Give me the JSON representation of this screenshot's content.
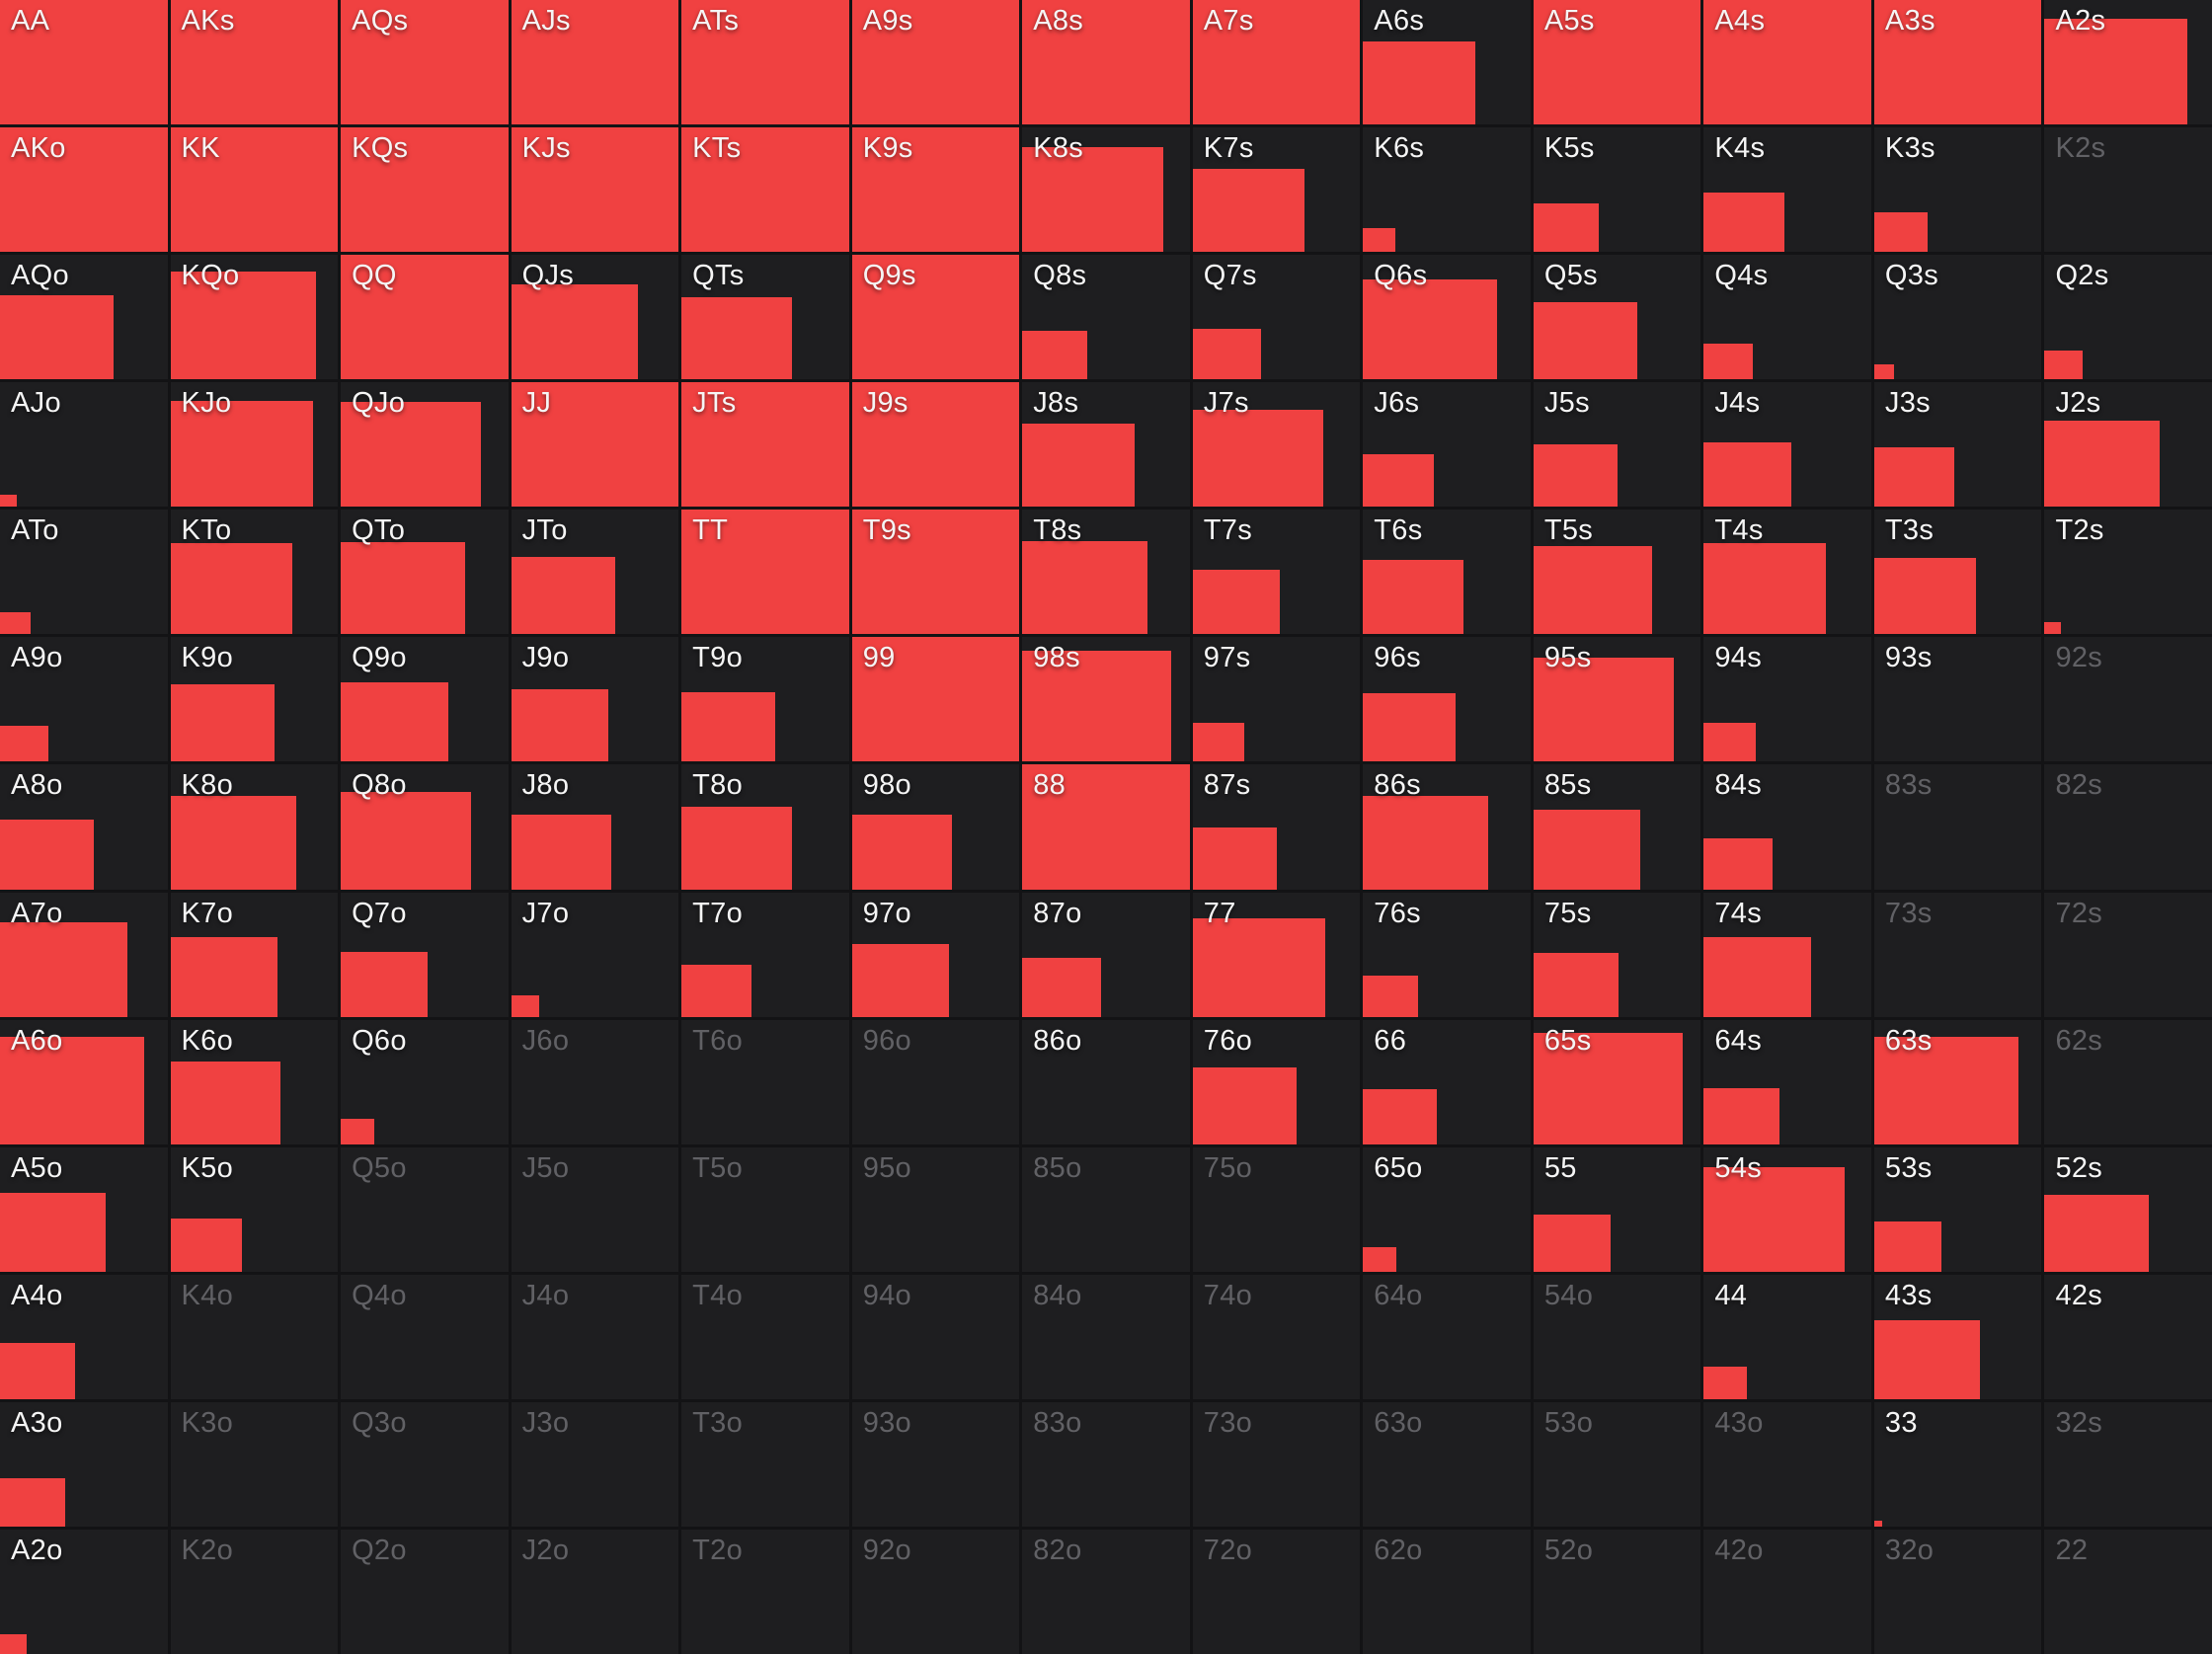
{
  "app": {
    "title": "Poker hand range matrix"
  },
  "colors": {
    "accent_red": "#f04141",
    "cell_background": "#1e1e20",
    "grid_line": "#131315",
    "label_color": "#f5f5f5",
    "label_dim_color": "#616165"
  },
  "grid": {
    "columns": 13,
    "rows": 13,
    "cells": [
      [
        {
          "label": "AA",
          "fill": 1,
          "dim": false
        },
        {
          "label": "AKs",
          "fill": 1,
          "dim": false
        },
        {
          "label": "AQs",
          "fill": 1,
          "dim": false
        },
        {
          "label": "AJs",
          "fill": 1,
          "dim": false
        },
        {
          "label": "ATs",
          "fill": 1,
          "dim": false
        },
        {
          "label": "A9s",
          "fill": 1,
          "dim": false
        },
        {
          "label": "A8s",
          "fill": 1,
          "dim": false
        },
        {
          "label": "A7s",
          "fill": 1,
          "dim": false
        },
        {
          "label": "A6s",
          "fill": 0.67,
          "dim": false
        },
        {
          "label": "A5s",
          "fill": 1,
          "dim": false
        },
        {
          "label": "A4s",
          "fill": 1,
          "dim": false
        },
        {
          "label": "A3s",
          "fill": 1,
          "dim": false
        },
        {
          "label": "A2s",
          "fill": 0.85,
          "dim": false
        }
      ],
      [
        {
          "label": "AKo",
          "fill": 1,
          "dim": false
        },
        {
          "label": "KK",
          "fill": 1,
          "dim": false
        },
        {
          "label": "KQs",
          "fill": 1,
          "dim": false
        },
        {
          "label": "KJs",
          "fill": 1,
          "dim": false
        },
        {
          "label": "KTs",
          "fill": 1,
          "dim": false
        },
        {
          "label": "K9s",
          "fill": 1,
          "dim": false
        },
        {
          "label": "K8s",
          "fill": 0.84,
          "dim": false
        },
        {
          "label": "K7s",
          "fill": 0.67,
          "dim": false
        },
        {
          "label": "K6s",
          "fill": 0.19,
          "dim": false
        },
        {
          "label": "K5s",
          "fill": 0.39,
          "dim": false
        },
        {
          "label": "K4s",
          "fill": 0.48,
          "dim": false
        },
        {
          "label": "K3s",
          "fill": 0.32,
          "dim": false
        },
        {
          "label": "K2s",
          "fill": 0,
          "dim": true
        }
      ],
      [
        {
          "label": "AQo",
          "fill": 0.68,
          "dim": false
        },
        {
          "label": "KQo",
          "fill": 0.87,
          "dim": false
        },
        {
          "label": "QQ",
          "fill": 1,
          "dim": false
        },
        {
          "label": "QJs",
          "fill": 0.76,
          "dim": false
        },
        {
          "label": "QTs",
          "fill": 0.66,
          "dim": false
        },
        {
          "label": "Q9s",
          "fill": 1,
          "dim": false
        },
        {
          "label": "Q8s",
          "fill": 0.39,
          "dim": false
        },
        {
          "label": "Q7s",
          "fill": 0.41,
          "dim": false
        },
        {
          "label": "Q6s",
          "fill": 0.8,
          "dim": false
        },
        {
          "label": "Q5s",
          "fill": 0.62,
          "dim": false
        },
        {
          "label": "Q4s",
          "fill": 0.29,
          "dim": false
        },
        {
          "label": "Q3s",
          "fill": 0.12,
          "dim": false
        },
        {
          "label": "Q2s",
          "fill": 0.23,
          "dim": false
        }
      ],
      [
        {
          "label": "AJo",
          "fill": 0.1,
          "dim": false
        },
        {
          "label": "KJo",
          "fill": 0.85,
          "dim": false
        },
        {
          "label": "QJo",
          "fill": 0.84,
          "dim": false
        },
        {
          "label": "JJ",
          "fill": 1,
          "dim": false
        },
        {
          "label": "JTs",
          "fill": 1,
          "dim": false
        },
        {
          "label": "J9s",
          "fill": 1,
          "dim": false
        },
        {
          "label": "J8s",
          "fill": 0.67,
          "dim": false
        },
        {
          "label": "J7s",
          "fill": 0.78,
          "dim": false
        },
        {
          "label": "J6s",
          "fill": 0.42,
          "dim": false
        },
        {
          "label": "J5s",
          "fill": 0.5,
          "dim": false
        },
        {
          "label": "J4s",
          "fill": 0.52,
          "dim": false
        },
        {
          "label": "J3s",
          "fill": 0.48,
          "dim": false
        },
        {
          "label": "J2s",
          "fill": 0.69,
          "dim": false
        }
      ],
      [
        {
          "label": "ATo",
          "fill": 0.18,
          "dim": false
        },
        {
          "label": "KTo",
          "fill": 0.73,
          "dim": false
        },
        {
          "label": "QTo",
          "fill": 0.74,
          "dim": false
        },
        {
          "label": "JTo",
          "fill": 0.62,
          "dim": false
        },
        {
          "label": "TT",
          "fill": 1,
          "dim": false
        },
        {
          "label": "T9s",
          "fill": 1,
          "dim": false
        },
        {
          "label": "T8s",
          "fill": 0.75,
          "dim": false
        },
        {
          "label": "T7s",
          "fill": 0.52,
          "dim": false
        },
        {
          "label": "T6s",
          "fill": 0.6,
          "dim": false
        },
        {
          "label": "T5s",
          "fill": 0.71,
          "dim": false
        },
        {
          "label": "T4s",
          "fill": 0.73,
          "dim": false
        },
        {
          "label": "T3s",
          "fill": 0.61,
          "dim": false
        },
        {
          "label": "T2s",
          "fill": 0.1,
          "dim": false
        }
      ],
      [
        {
          "label": "A9o",
          "fill": 0.29,
          "dim": false
        },
        {
          "label": "K9o",
          "fill": 0.62,
          "dim": false
        },
        {
          "label": "Q9o",
          "fill": 0.64,
          "dim": false
        },
        {
          "label": "J9o",
          "fill": 0.58,
          "dim": false
        },
        {
          "label": "T9o",
          "fill": 0.56,
          "dim": false
        },
        {
          "label": "99",
          "fill": 1,
          "dim": false
        },
        {
          "label": "98s",
          "fill": 0.89,
          "dim": false
        },
        {
          "label": "97s",
          "fill": 0.31,
          "dim": false
        },
        {
          "label": "96s",
          "fill": 0.55,
          "dim": false
        },
        {
          "label": "95s",
          "fill": 0.84,
          "dim": false
        },
        {
          "label": "94s",
          "fill": 0.31,
          "dim": false
        },
        {
          "label": "93s",
          "fill": 0,
          "dim": false
        },
        {
          "label": "92s",
          "fill": 0,
          "dim": true
        }
      ],
      [
        {
          "label": "A8o",
          "fill": 0.56,
          "dim": false
        },
        {
          "label": "K8o",
          "fill": 0.75,
          "dim": false
        },
        {
          "label": "Q8o",
          "fill": 0.78,
          "dim": false
        },
        {
          "label": "J8o",
          "fill": 0.6,
          "dim": false
        },
        {
          "label": "T8o",
          "fill": 0.66,
          "dim": false
        },
        {
          "label": "98o",
          "fill": 0.6,
          "dim": false
        },
        {
          "label": "88",
          "fill": 1,
          "dim": false
        },
        {
          "label": "87s",
          "fill": 0.5,
          "dim": false
        },
        {
          "label": "86s",
          "fill": 0.75,
          "dim": false
        },
        {
          "label": "85s",
          "fill": 0.64,
          "dim": false
        },
        {
          "label": "84s",
          "fill": 0.41,
          "dim": false
        },
        {
          "label": "83s",
          "fill": 0,
          "dim": true
        },
        {
          "label": "82s",
          "fill": 0,
          "dim": true
        }
      ],
      [
        {
          "label": "A7o",
          "fill": 0.76,
          "dim": false
        },
        {
          "label": "K7o",
          "fill": 0.64,
          "dim": false
        },
        {
          "label": "Q7o",
          "fill": 0.52,
          "dim": false
        },
        {
          "label": "J7o",
          "fill": 0.17,
          "dim": false
        },
        {
          "label": "T7o",
          "fill": 0.42,
          "dim": false
        },
        {
          "label": "97o",
          "fill": 0.58,
          "dim": false
        },
        {
          "label": "87o",
          "fill": 0.47,
          "dim": false
        },
        {
          "label": "77",
          "fill": 0.79,
          "dim": false
        },
        {
          "label": "76s",
          "fill": 0.33,
          "dim": false
        },
        {
          "label": "75s",
          "fill": 0.51,
          "dim": false
        },
        {
          "label": "74s",
          "fill": 0.64,
          "dim": false
        },
        {
          "label": "73s",
          "fill": 0,
          "dim": true
        },
        {
          "label": "72s",
          "fill": 0,
          "dim": true
        }
      ],
      [
        {
          "label": "A6o",
          "fill": 0.86,
          "dim": false
        },
        {
          "label": "K6o",
          "fill": 0.66,
          "dim": false
        },
        {
          "label": "Q6o",
          "fill": 0.2,
          "dim": false
        },
        {
          "label": "J6o",
          "fill": 0,
          "dim": true
        },
        {
          "label": "T6o",
          "fill": 0,
          "dim": true
        },
        {
          "label": "96o",
          "fill": 0,
          "dim": true
        },
        {
          "label": "86o",
          "fill": 0,
          "dim": false
        },
        {
          "label": "76o",
          "fill": 0.62,
          "dim": false
        },
        {
          "label": "66",
          "fill": 0.44,
          "dim": false
        },
        {
          "label": "65s",
          "fill": 0.89,
          "dim": false
        },
        {
          "label": "64s",
          "fill": 0.45,
          "dim": false
        },
        {
          "label": "63s",
          "fill": 0.86,
          "dim": false
        },
        {
          "label": "62s",
          "fill": 0,
          "dim": true
        }
      ],
      [
        {
          "label": "A5o",
          "fill": 0.63,
          "dim": false
        },
        {
          "label": "K5o",
          "fill": 0.43,
          "dim": false
        },
        {
          "label": "Q5o",
          "fill": 0,
          "dim": true
        },
        {
          "label": "J5o",
          "fill": 0,
          "dim": true
        },
        {
          "label": "T5o",
          "fill": 0,
          "dim": true
        },
        {
          "label": "95o",
          "fill": 0,
          "dim": true
        },
        {
          "label": "85o",
          "fill": 0,
          "dim": true
        },
        {
          "label": "75o",
          "fill": 0,
          "dim": true
        },
        {
          "label": "65o",
          "fill": 0.2,
          "dim": false
        },
        {
          "label": "55",
          "fill": 0.46,
          "dim": false
        },
        {
          "label": "54s",
          "fill": 0.84,
          "dim": false
        },
        {
          "label": "53s",
          "fill": 0.4,
          "dim": false
        },
        {
          "label": "52s",
          "fill": 0.62,
          "dim": false
        }
      ],
      [
        {
          "label": "A4o",
          "fill": 0.45,
          "dim": false
        },
        {
          "label": "K4o",
          "fill": 0,
          "dim": true
        },
        {
          "label": "Q4o",
          "fill": 0,
          "dim": true
        },
        {
          "label": "J4o",
          "fill": 0,
          "dim": true
        },
        {
          "label": "T4o",
          "fill": 0,
          "dim": true
        },
        {
          "label": "94o",
          "fill": 0,
          "dim": true
        },
        {
          "label": "84o",
          "fill": 0,
          "dim": true
        },
        {
          "label": "74o",
          "fill": 0,
          "dim": true
        },
        {
          "label": "64o",
          "fill": 0,
          "dim": true
        },
        {
          "label": "54o",
          "fill": 0,
          "dim": true
        },
        {
          "label": "44",
          "fill": 0.26,
          "dim": false
        },
        {
          "label": "43s",
          "fill": 0.63,
          "dim": false
        },
        {
          "label": "42s",
          "fill": 0,
          "dim": false
        }
      ],
      [
        {
          "label": "A3o",
          "fill": 0.39,
          "dim": false
        },
        {
          "label": "K3o",
          "fill": 0,
          "dim": true
        },
        {
          "label": "Q3o",
          "fill": 0,
          "dim": true
        },
        {
          "label": "J3o",
          "fill": 0,
          "dim": true
        },
        {
          "label": "T3o",
          "fill": 0,
          "dim": true
        },
        {
          "label": "93o",
          "fill": 0,
          "dim": true
        },
        {
          "label": "83o",
          "fill": 0,
          "dim": true
        },
        {
          "label": "73o",
          "fill": 0,
          "dim": true
        },
        {
          "label": "63o",
          "fill": 0,
          "dim": true
        },
        {
          "label": "53o",
          "fill": 0,
          "dim": true
        },
        {
          "label": "43o",
          "fill": 0,
          "dim": true
        },
        {
          "label": "33",
          "fill": 0.05,
          "dim": false
        },
        {
          "label": "32s",
          "fill": 0,
          "dim": true
        }
      ],
      [
        {
          "label": "A2o",
          "fill": 0.16,
          "dim": false
        },
        {
          "label": "K2o",
          "fill": 0,
          "dim": true
        },
        {
          "label": "Q2o",
          "fill": 0,
          "dim": true
        },
        {
          "label": "J2o",
          "fill": 0,
          "dim": true
        },
        {
          "label": "T2o",
          "fill": 0,
          "dim": true
        },
        {
          "label": "92o",
          "fill": 0,
          "dim": true
        },
        {
          "label": "82o",
          "fill": 0,
          "dim": true
        },
        {
          "label": "72o",
          "fill": 0,
          "dim": true
        },
        {
          "label": "62o",
          "fill": 0,
          "dim": true
        },
        {
          "label": "52o",
          "fill": 0,
          "dim": true
        },
        {
          "label": "42o",
          "fill": 0,
          "dim": true
        },
        {
          "label": "32o",
          "fill": 0,
          "dim": true
        },
        {
          "label": "22",
          "fill": 0,
          "dim": true
        }
      ]
    ]
  }
}
